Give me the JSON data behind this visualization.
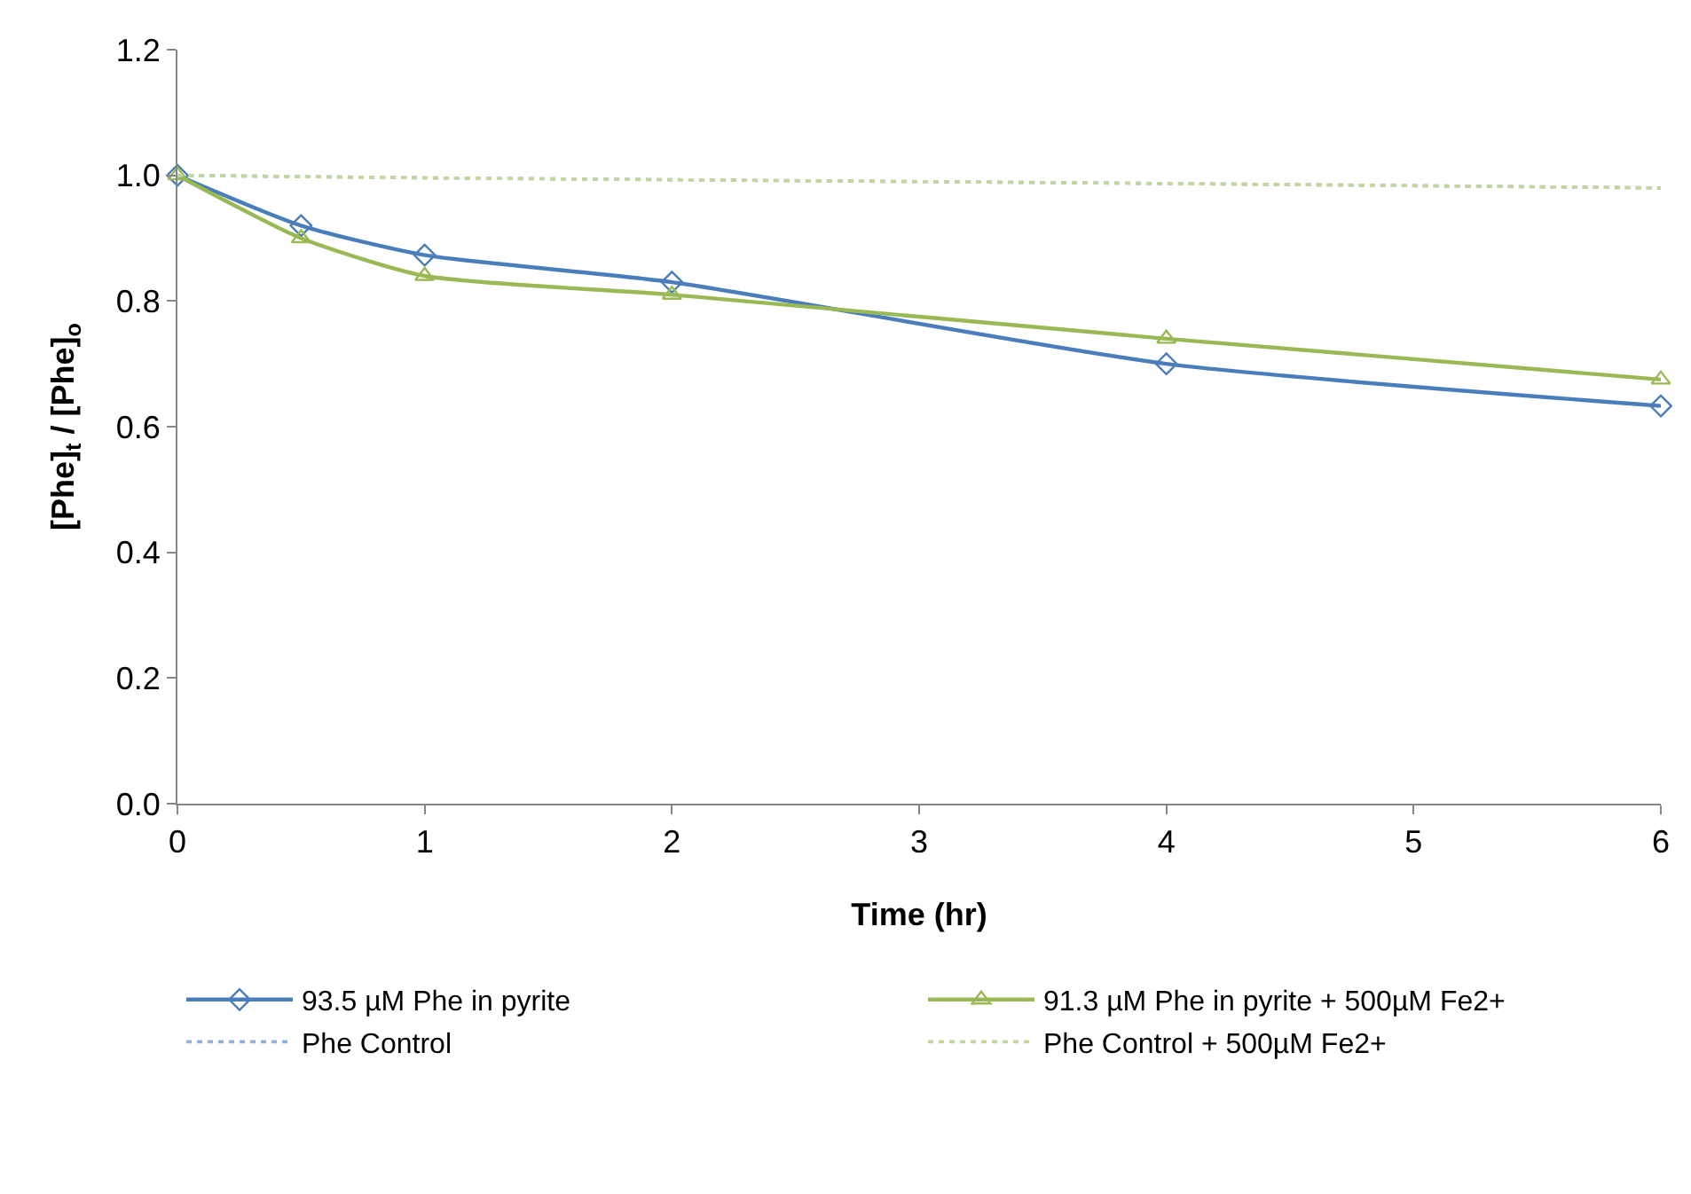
{
  "chart_data": {
    "type": "line",
    "xlabel": "Time (hr)",
    "ylabel": "[Phe]$_{t}$ / [Phe]$_{o}$",
    "x": [
      0,
      0.5,
      1,
      2,
      4,
      6
    ],
    "xlim": [
      0,
      6
    ],
    "xticks": [
      0,
      1,
      2,
      3,
      4,
      5,
      6
    ],
    "ylim": [
      0,
      1.2
    ],
    "yticks": [
      {
        "value": 0,
        "label": "0.0"
      },
      {
        "value": 0.2,
        "label": "0.2"
      },
      {
        "value": 0.4,
        "label": "0.4"
      },
      {
        "value": 0.6,
        "label": "0.6"
      },
      {
        "value": 0.8,
        "label": "0.8"
      },
      {
        "value": 1.0,
        "label": "1.0"
      },
      {
        "value": 1.2,
        "label": "1.2"
      }
    ],
    "legend": "bottom",
    "series": [
      {
        "name": "93.5 µM Phe in pyrite",
        "color": "#4a7ebb",
        "marker": "diamond",
        "line_style": "solid",
        "values": [
          1.0,
          0.92,
          0.873,
          0.83,
          0.7,
          0.633
        ]
      },
      {
        "name": "91.3 µM Phe in pyrite + 500µM Fe2+",
        "color": "#98b954",
        "marker": "triangle",
        "line_style": "solid",
        "values": [
          1.0,
          0.9,
          0.84,
          0.81,
          0.74,
          0.675
        ]
      },
      {
        "name": "Phe Control",
        "color": "#95b3d7",
        "marker": "none",
        "line_style": "dotted",
        "values": [
          1.0,
          0.998,
          0.996,
          0.993,
          0.987,
          0.98
        ]
      },
      {
        "name": "Phe Control + 500µM Fe2+",
        "color": "#c3d69b",
        "marker": "none",
        "line_style": "dotted",
        "values": [
          1.0,
          0.998,
          0.996,
          0.993,
          0.987,
          0.98
        ]
      }
    ]
  }
}
